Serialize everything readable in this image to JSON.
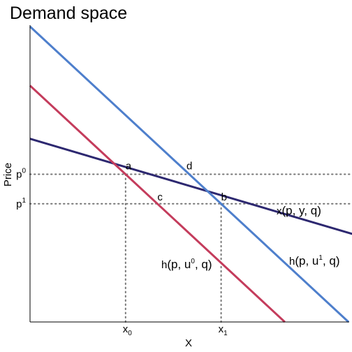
{
  "chart_data": {
    "type": "line",
    "title": "Demand space",
    "xlabel": "X",
    "ylabel": "Price",
    "grid": false,
    "legend": "none",
    "series": [
      {
        "key": "x",
        "color": "#2d2870",
        "points": [
          [
            0,
            6.2
          ],
          [
            11,
            2.7
          ]
        ]
      },
      {
        "key": "u0",
        "color": "#c43c5c",
        "points": [
          [
            0,
            8.0
          ],
          [
            8.0,
            0.0
          ]
        ]
      },
      {
        "key": "u1",
        "color": "#4e7fcc",
        "points": [
          [
            0,
            10.0
          ],
          [
            10.0,
            0.0
          ]
        ]
      }
    ],
    "prices": [
      {
        "base": "p",
        "sup": "0",
        "value": 5.0
      },
      {
        "base": "p",
        "sup": "1",
        "value": 4.0
      }
    ],
    "quantities": [
      {
        "base": "x",
        "sub": "0",
        "value": 3.0
      },
      {
        "base": "x",
        "sub": "1",
        "value": 6.0
      }
    ],
    "points": [
      {
        "label": "a",
        "x": 3.0,
        "y": 5.0
      },
      {
        "label": "d",
        "x": 5.0,
        "y": 5.0
      },
      {
        "label": "c",
        "x": 4.0,
        "y": 4.0
      },
      {
        "label": "b",
        "x": 6.0,
        "y": 4.0
      }
    ],
    "curve_labels": [
      {
        "series": "x",
        "parts": [
          "x",
          "(p, y, q)"
        ]
      },
      {
        "series": "u0",
        "parts": [
          "h",
          "(p, u",
          "0",
          ", q)"
        ]
      },
      {
        "series": "u1",
        "parts": [
          "h",
          "(p, u",
          "1",
          ", q)"
        ]
      }
    ],
    "xlim": [
      0,
      10
    ],
    "ylim": [
      0,
      10
    ]
  }
}
